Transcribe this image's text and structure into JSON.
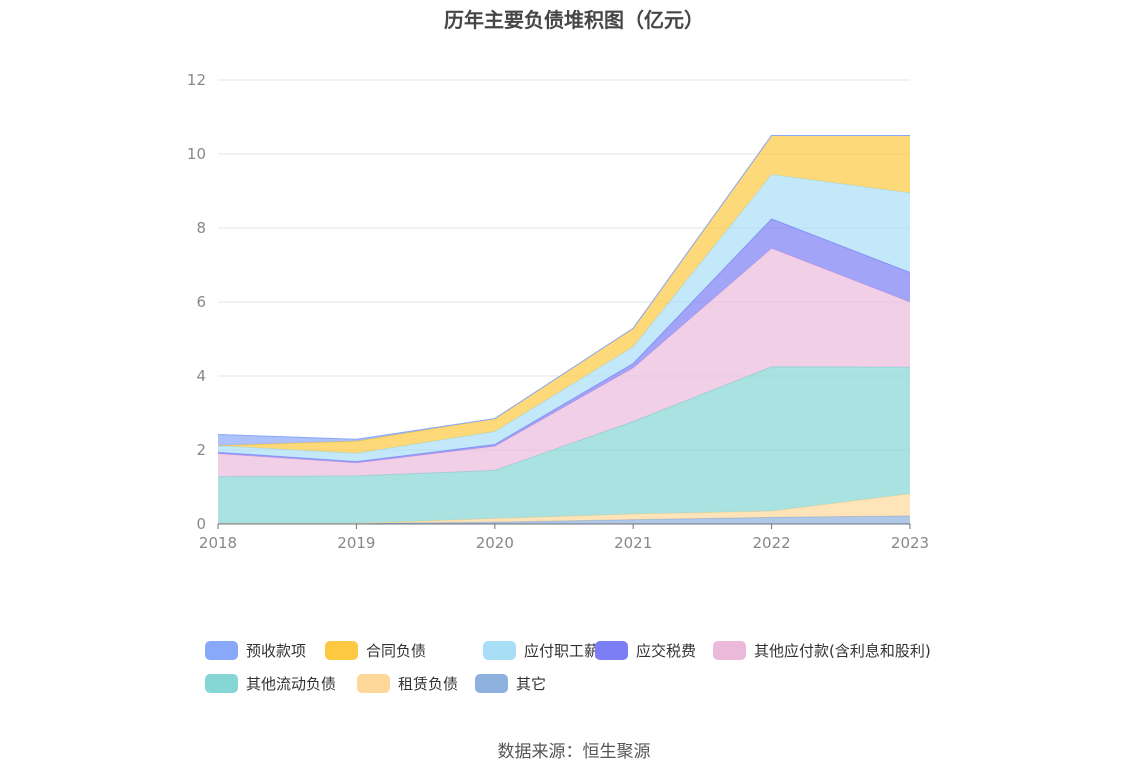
{
  "title": "历年主要负债堆积图（亿元）",
  "source": "数据来源：恒生聚源",
  "chart_data": {
    "type": "area",
    "stacked": true,
    "categories": [
      "2018",
      "2019",
      "2020",
      "2021",
      "2022",
      "2023"
    ],
    "ylim": [
      0,
      12
    ],
    "yticks": [
      0,
      2,
      4,
      6,
      8,
      10,
      12
    ],
    "grid": true,
    "legend_position": "bottom",
    "series": [
      {
        "name": "其它",
        "color": "#8eb0de",
        "values": [
          0.02,
          0.02,
          0.05,
          0.12,
          0.18,
          0.22
        ]
      },
      {
        "name": "租赁负债",
        "color": "#fdd89a",
        "values": [
          0.0,
          0.0,
          0.1,
          0.15,
          0.17,
          0.6
        ]
      },
      {
        "name": "其他流动负债",
        "color": "#86d6d6",
        "values": [
          1.26,
          1.28,
          1.3,
          2.5,
          3.9,
          3.42
        ]
      },
      {
        "name": "其他应付款(含利息和股利)",
        "color": "#ebbadb",
        "values": [
          0.62,
          0.35,
          0.65,
          1.45,
          3.2,
          1.76
        ]
      },
      {
        "name": "应交税费",
        "color": "#7b7ef5",
        "values": [
          0.04,
          0.04,
          0.05,
          0.12,
          0.8,
          0.8
        ]
      },
      {
        "name": "应付职工薪酬",
        "color": "#a9def7",
        "values": [
          0.18,
          0.22,
          0.35,
          0.45,
          1.2,
          2.15
        ]
      },
      {
        "name": "合同负债",
        "color": "#fdc941",
        "values": [
          0.0,
          0.33,
          0.35,
          0.5,
          1.05,
          1.55
        ]
      },
      {
        "name": "预收款项",
        "color": "#8aa8fa",
        "values": [
          0.3,
          0.05,
          0.0,
          0.0,
          0.0,
          0.0
        ]
      }
    ]
  },
  "legend_rows": [
    [
      "预收款项",
      "合同负债",
      "应付职工薪酬",
      "应交税费",
      "其他应付款(含利息和股利)"
    ],
    [
      "其他流动负债",
      "租赁负债",
      "其它"
    ]
  ]
}
